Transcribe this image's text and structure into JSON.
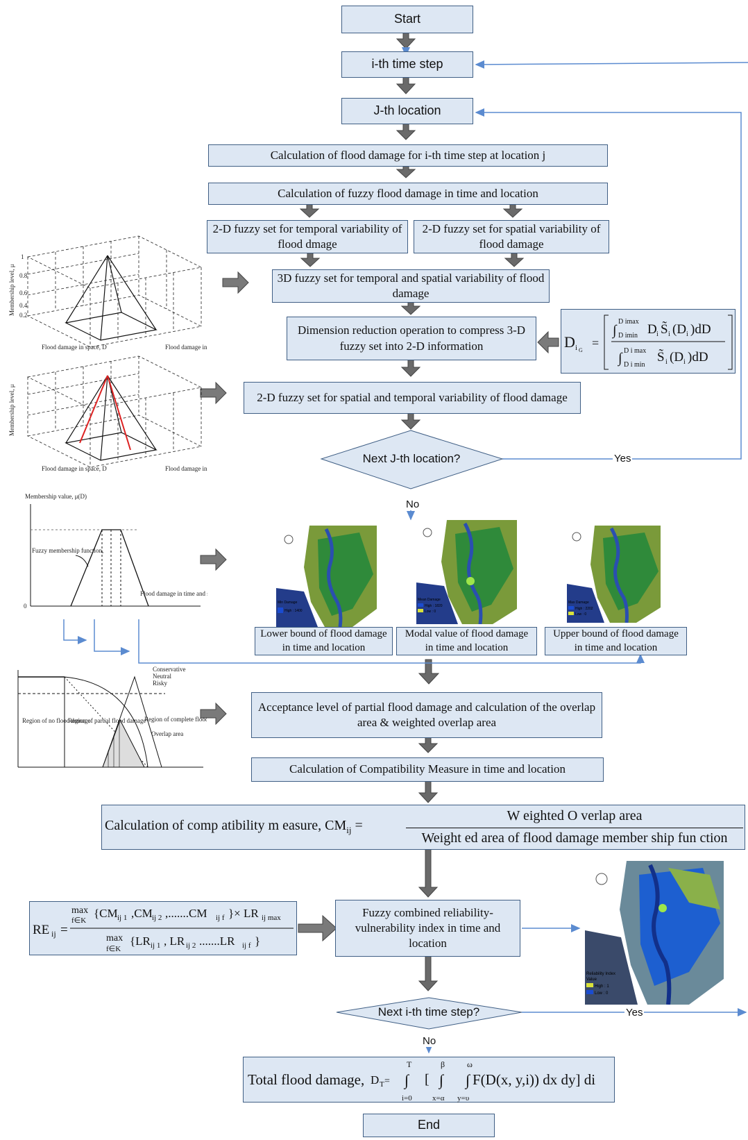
{
  "nodes": {
    "start": "Start",
    "time_step": "i-th time step",
    "location": "J-th location",
    "calc_damage": "Calculation of flood damage for i-th time step at location j",
    "calc_fuzzy": "Calculation of fuzzy flood damage in time and location",
    "fuzzy_temporal": "2-D fuzzy set for temporal variability of flood dmage",
    "fuzzy_spatial": "2-D fuzzy set for spatial variability of flood damage",
    "fuzzy_3d": "3D fuzzy set for temporal and spatial variability of flood damage",
    "dim_reduction": "Dimension reduction operation to compress 3-D fuzzy set into 2-D information",
    "fuzzy_2d": "2-D fuzzy set for spatial and temporal variability of flood damage",
    "next_location": "Next J-th location?",
    "lower_bound": "Lower bound of flood damage in time and location",
    "modal_value": "Modal value of flood damage in time and location",
    "upper_bound": "Upper bound of flood damage in time and location",
    "acceptance": "Acceptance level of partial flood damage and calculation of the overlap area & weighted overlap area",
    "calc_cm": "Calculation of Compatibility Measure in time and location",
    "fuzzy_index": "Fuzzy combined reliability-vulnerability index in time and location",
    "next_time": "Next i-th time step?",
    "end": "End"
  },
  "edge_labels": {
    "yes1": "Yes",
    "no1": "No",
    "yes2": "Yes",
    "no2": "No"
  },
  "formulas": {
    "cm_lhs": "Calculation of comp atibility m easure, CM",
    "cm_sub": "ij",
    "cm_num": "W eighted O verlap area",
    "cm_den": "Weight ed area of flood damage member ship fun ction",
    "total": "Total flood damage,",
    "total_expr": "F(D(x, y,i)) dx dy] di"
  },
  "thumbs": {
    "axis_membership": "Membership level, μ",
    "flood_space": "Flood damage in space, D",
    "flood_time": "Flood damage in time, D",
    "membership_value": "Membership value, μ(D)",
    "fuzzy_mf": "Fuzzy membership function,",
    "flood_damage_time_space": "Flood damage in time and space, D",
    "legend_conservative": "Conservative",
    "legend_neutral": "Neutral",
    "legend_risky": "Risky",
    "overlap_area": "Overlap area",
    "region_no": "Region of no flood damage",
    "region_partial": "Region of partial flood damage",
    "region_complete": "Region of complete flood damage"
  },
  "maps": {
    "min_label": "Min Damage",
    "min_high": "High : 1400",
    "mean_label": "Mean Damage",
    "mean_high": "High : 1820",
    "mean_low": "Low : 0",
    "max_label": "Max Damage",
    "max_high": "High : 2202",
    "max_low": "Low : 0",
    "ri_label": "Reliability Index",
    "ri_value": "Value",
    "ri_high": "High : 1",
    "ri_low": "Low : 0"
  },
  "colors": {
    "box_fill": "#dde7f3",
    "box_border": "#3f5e84",
    "arrow": "#555555",
    "connector": "#5b8bd0"
  }
}
